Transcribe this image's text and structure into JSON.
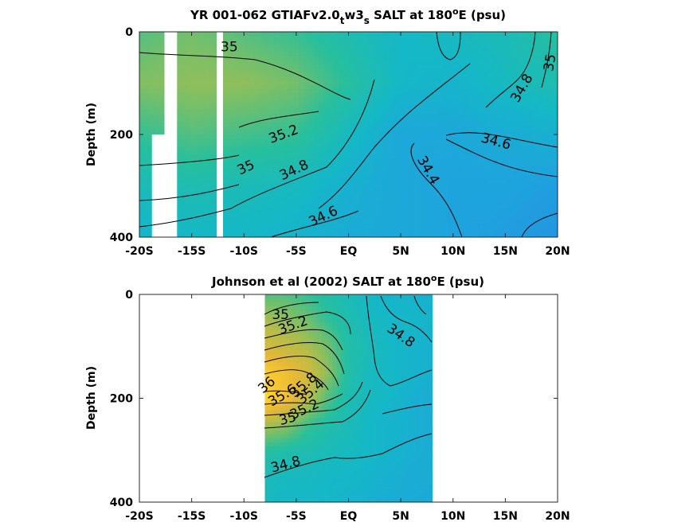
{
  "chart_data": [
    {
      "type": "heatmap",
      "title_main": "YR 001-062 GTIAFv2.0",
      "title_sub1": "t",
      "title_mid": "w3",
      "title_sub2": "s",
      "title_tail": " SALT at 180",
      "title_sup": "o",
      "title_end": "E (psu)",
      "ylabel": "Depth (m)",
      "xlim": [
        -20,
        20
      ],
      "ylim": [
        0,
        400
      ],
      "x_ticks": [
        {
          "value": -20,
          "label": "-20S"
        },
        {
          "value": -15,
          "label": "-15S"
        },
        {
          "value": -10,
          "label": "-10S"
        },
        {
          "value": -5,
          "label": "-5S"
        },
        {
          "value": 0,
          "label": "EQ"
        },
        {
          "value": 5,
          "label": "5N"
        },
        {
          "value": 10,
          "label": "10N"
        },
        {
          "value": 15,
          "label": "15N"
        },
        {
          "value": 20,
          "label": "20N"
        }
      ],
      "y_ticks": [
        {
          "value": 0,
          "label": "0"
        },
        {
          "value": 200,
          "label": "200"
        },
        {
          "value": 400,
          "label": "400"
        }
      ],
      "color_scale": {
        "min": 34.2,
        "max": 36.2
      },
      "x": [
        -20,
        -15,
        -10,
        -5,
        0,
        5,
        10,
        15,
        20
      ],
      "depth": [
        0,
        100,
        200,
        300,
        400
      ],
      "values": [
        [
          35.1,
          35.2,
          35.1,
          35.0,
          34.85,
          34.7,
          34.75,
          34.8,
          34.95
        ],
        [
          35.25,
          35.3,
          35.3,
          35.2,
          34.95,
          34.7,
          34.65,
          34.75,
          34.85
        ],
        [
          35.0,
          35.1,
          35.05,
          35.0,
          34.75,
          34.5,
          34.5,
          34.55,
          34.6
        ],
        [
          34.8,
          34.85,
          34.8,
          34.75,
          34.6,
          34.5,
          34.45,
          34.45,
          34.4
        ],
        [
          34.65,
          34.7,
          34.7,
          34.65,
          34.55,
          34.5,
          34.45,
          34.4,
          34.35
        ]
      ],
      "gaps": [
        {
          "x0": -17.6,
          "x1": -16.4
        },
        {
          "x0": -12.6,
          "x1": -12.0
        }
      ],
      "contour_labels": [
        {
          "text": "35",
          "x": -11.4,
          "y": 30,
          "rot": 0
        },
        {
          "text": "35.2",
          "x": -6.2,
          "y": 200,
          "rot": -20
        },
        {
          "text": "35",
          "x": -9.8,
          "y": 265,
          "rot": -25
        },
        {
          "text": "34.8",
          "x": -5.2,
          "y": 270,
          "rot": -25
        },
        {
          "text": "34.6",
          "x": -2.4,
          "y": 360,
          "rot": -25
        },
        {
          "text": "34.4",
          "x": 7.6,
          "y": 270,
          "rot": 60
        },
        {
          "text": "34.6",
          "x": 14.1,
          "y": 214,
          "rot": 15
        },
        {
          "text": "34.8",
          "x": 16.6,
          "y": 110,
          "rot": -60
        },
        {
          "text": "35",
          "x": 19.3,
          "y": 60,
          "rot": -80
        }
      ]
    },
    {
      "type": "heatmap",
      "title_main": "Johnson et al (2002) SALT at 180",
      "title_sup": "o",
      "title_end": "E (psu)",
      "ylabel": "Depth (m)",
      "xlim": [
        -20,
        20
      ],
      "ylim": [
        0,
        400
      ],
      "x_ticks": [
        {
          "value": -20,
          "label": "-20S"
        },
        {
          "value": -15,
          "label": "-15S"
        },
        {
          "value": -10,
          "label": "-10S"
        },
        {
          "value": -5,
          "label": "-5S"
        },
        {
          "value": 0,
          "label": "EQ"
        },
        {
          "value": 5,
          "label": "5N"
        },
        {
          "value": 10,
          "label": "10N"
        },
        {
          "value": 15,
          "label": "15N"
        },
        {
          "value": 20,
          "label": "20N"
        }
      ],
      "y_ticks": [
        {
          "value": 0,
          "label": "0"
        },
        {
          "value": 200,
          "label": "200"
        },
        {
          "value": 400,
          "label": "400"
        }
      ],
      "color_scale": {
        "min": 34.2,
        "max": 36.2
      },
      "data_extent": {
        "x0": -8,
        "x1": 8
      },
      "x": [
        -8,
        -6,
        -4,
        -2,
        0,
        2,
        4,
        6,
        8
      ],
      "depth": [
        0,
        50,
        100,
        150,
        200,
        250,
        300,
        350,
        400
      ],
      "values": [
        [
          35.1,
          35.1,
          35.0,
          34.9,
          34.8,
          34.7,
          34.65,
          34.65,
          34.6
        ],
        [
          35.4,
          35.3,
          35.2,
          35.0,
          34.85,
          34.75,
          34.7,
          34.7,
          34.65
        ],
        [
          35.6,
          35.5,
          35.4,
          35.2,
          34.9,
          34.8,
          34.7,
          34.65,
          34.6
        ],
        [
          35.95,
          35.8,
          35.6,
          35.3,
          34.9,
          34.75,
          34.7,
          34.65,
          34.6
        ],
        [
          36.05,
          35.85,
          35.5,
          35.1,
          34.85,
          34.75,
          34.7,
          34.6,
          34.55
        ],
        [
          35.4,
          35.3,
          35.05,
          34.9,
          34.8,
          34.7,
          34.65,
          34.6,
          34.55
        ],
        [
          34.95,
          34.9,
          34.85,
          34.8,
          34.75,
          34.7,
          34.65,
          34.6,
          34.55
        ],
        [
          34.8,
          34.75,
          34.75,
          34.7,
          34.7,
          34.65,
          34.6,
          34.55,
          34.55
        ],
        [
          34.75,
          34.7,
          34.7,
          34.7,
          34.65,
          34.6,
          34.55,
          34.55,
          34.5
        ]
      ],
      "contour_labels": [
        {
          "text": "35",
          "x": -6.5,
          "y": 40,
          "rot": 0
        },
        {
          "text": "35.2",
          "x": -5.3,
          "y": 60,
          "rot": -20
        },
        {
          "text": "34.8",
          "x": 5.0,
          "y": 80,
          "rot": 35
        },
        {
          "text": "36",
          "x": -7.8,
          "y": 175,
          "rot": -40
        },
        {
          "text": "35.8",
          "x": -4.3,
          "y": 175,
          "rot": -40
        },
        {
          "text": "35.6",
          "x": -6.3,
          "y": 195,
          "rot": -30
        },
        {
          "text": "35.4",
          "x": -3.6,
          "y": 188,
          "rot": -40
        },
        {
          "text": "35.2",
          "x": -4.2,
          "y": 222,
          "rot": -25
        },
        {
          "text": "35",
          "x": -5.8,
          "y": 240,
          "rot": -15
        },
        {
          "text": "34.8",
          "x": -6.0,
          "y": 328,
          "rot": -15
        }
      ]
    }
  ]
}
